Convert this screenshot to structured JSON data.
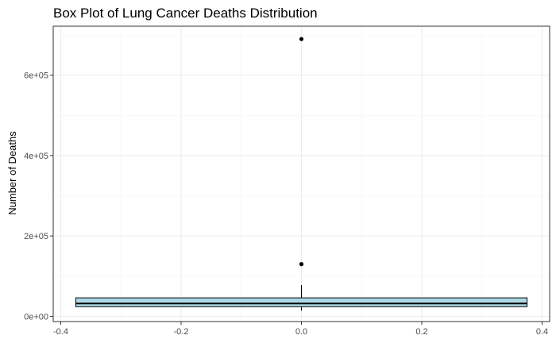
{
  "chart_data": {
    "type": "box",
    "title": "Box Plot of Lung Cancer Deaths Distribution",
    "xlabel": "",
    "ylabel": "Number of Deaths",
    "xlim": [
      -0.4125,
      0.4125
    ],
    "ylim": [
      -13000,
      722000
    ],
    "x_ticks": [
      -0.4,
      -0.2,
      0.0,
      0.2,
      0.4
    ],
    "x_tick_labels": [
      "-0.4",
      "-0.2",
      "0.0",
      "0.2",
      "0.4"
    ],
    "y_ticks": [
      0,
      200000,
      400000,
      600000
    ],
    "y_tick_labels": [
      "0e+00",
      "2e+05",
      "4e+05",
      "6e+05"
    ],
    "grid": true,
    "box": {
      "x_min": -0.375,
      "x_max": 0.375,
      "x_center": 0.0,
      "q1": 24000,
      "median": 32000,
      "q3": 46000,
      "whisker_low": 14000,
      "whisker_high": 78000,
      "fill": "#add8e6",
      "outliers": [
        130000,
        690000
      ]
    }
  }
}
